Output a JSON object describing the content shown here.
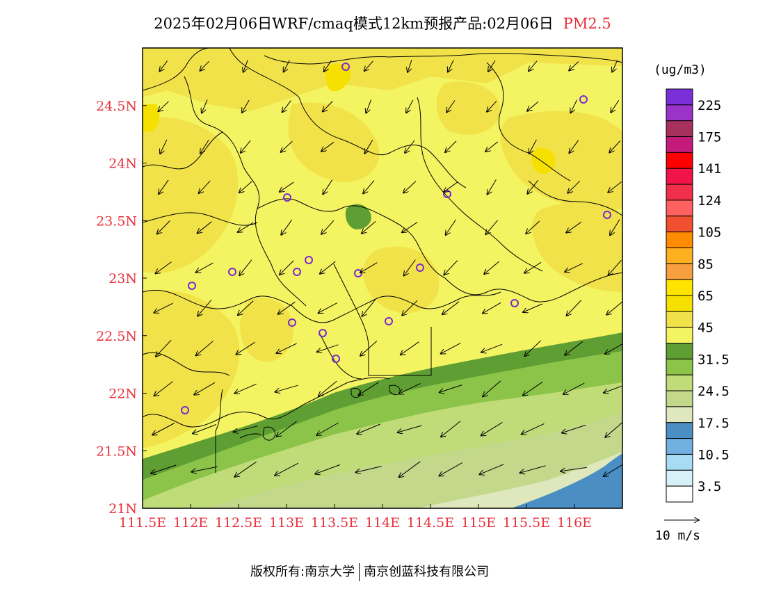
{
  "title": {
    "main": "2025年02月06日WRF/cmaq模式12km预报产品:02月06日",
    "variable": "PM2.5"
  },
  "axes": {
    "lon_ticks": [
      "111.5E",
      "112E",
      "112.5E",
      "113E",
      "113.5E",
      "114E",
      "114.5E",
      "115E",
      "115.5E",
      "116E"
    ],
    "lat_ticks": [
      "21N",
      "21.5N",
      "22N",
      "22.5N",
      "23N",
      "23.5N",
      "24N",
      "24.5N"
    ],
    "lon_values": [
      111.5,
      112,
      112.5,
      113,
      113.5,
      114,
      114.5,
      115,
      115.5,
      116
    ],
    "lat_values": [
      21,
      21.5,
      22,
      22.5,
      23,
      23.5,
      24,
      24.5
    ],
    "lon_range": [
      111.5,
      116.5
    ],
    "lat_range": [
      21,
      25.0
    ],
    "tick_color": "#e8303a"
  },
  "legend": {
    "unit": "(ug/m3)",
    "labels": [
      "225",
      "175",
      "141",
      "124",
      "105",
      "85",
      "65",
      "45",
      "31.5",
      "24.5",
      "17.5",
      "10.5",
      "3.5"
    ],
    "colors": [
      "#7b2fd8",
      "#9a33c8",
      "#a8305c",
      "#c41a7a",
      "#ff0000",
      "#f01448",
      "#f0304a",
      "#ff6060",
      "#f05030",
      "#ff8c00",
      "#ffb020",
      "#f8a040",
      "#ffe400",
      "#f6e000",
      "#f2e24a",
      "#f4f462",
      "#5f9e32",
      "#8cc44a",
      "#c0dc78",
      "#c4d88c",
      "#dfe8bc",
      "#4a8ec4",
      "#72b0e0",
      "#a8dcf4",
      "#d8f0f8",
      "#ffffff"
    ]
  },
  "map_colors": {
    "low_yellow": "#f4f462",
    "mid_yellow": "#f2e24a",
    "bright_yellow": "#f6e000",
    "dark_green": "#5f9e32",
    "green": "#8cc44a",
    "light_green": "#c0dc78",
    "olive_light": "#c4d88c",
    "pale": "#dfe8bc",
    "blue": "#4a8ec4",
    "station": "#7a28d0"
  },
  "wind_key": {
    "label": "10 m/s"
  },
  "copyright": {
    "left": "版权所有:南京大学",
    "right": "南京创蓝科技有限公司"
  }
}
